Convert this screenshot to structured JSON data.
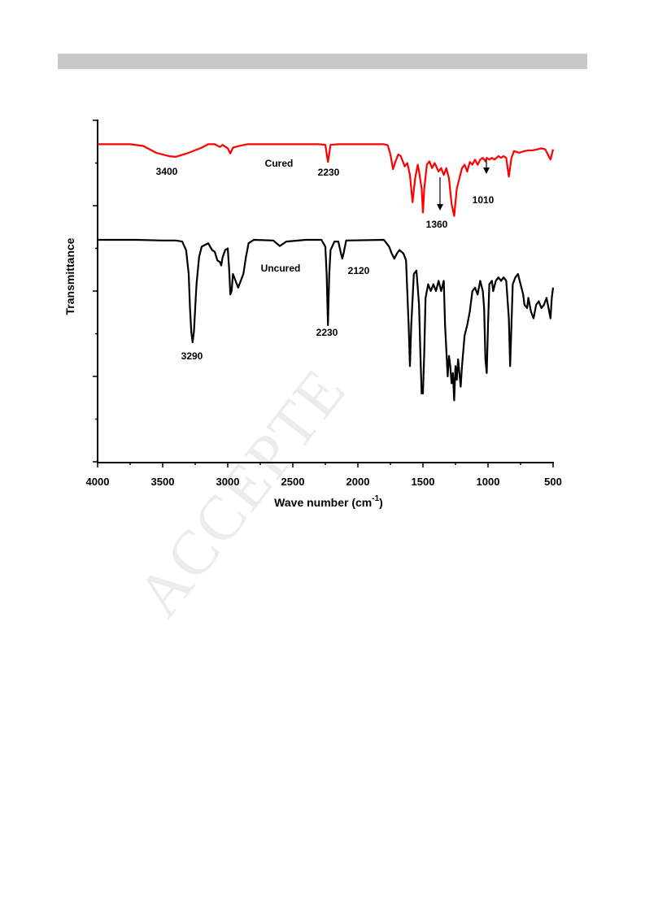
{
  "watermark": "ACCEPTE",
  "chart_data": {
    "type": "line",
    "title": "",
    "xlabel": "Wave number (cm",
    "xlabel_sup": "-1",
    "xlabel_close": ")",
    "ylabel": "Transmittance",
    "xlim": [
      4000,
      500
    ],
    "x_reversed": true,
    "ylim": [
      0,
      100
    ],
    "y_ticks_labeled": false,
    "x_ticks": [
      4000,
      3500,
      3000,
      2500,
      2000,
      1500,
      1000,
      500
    ],
    "x_tick_labels": [
      "4000",
      "3500",
      "3000",
      "2500",
      "2000",
      "1500",
      "1000",
      "500"
    ],
    "grid": false,
    "legend": "none",
    "series": [
      {
        "name": "Cured",
        "color": "#ff0000",
        "points": [
          [
            4000,
            93
          ],
          [
            3750,
            93
          ],
          [
            3650,
            92.5
          ],
          [
            3550,
            90.5
          ],
          [
            3450,
            89.5
          ],
          [
            3400,
            89.3
          ],
          [
            3300,
            90.5
          ],
          [
            3200,
            92
          ],
          [
            3150,
            93
          ],
          [
            3100,
            93
          ],
          [
            3060,
            92.2
          ],
          [
            3040,
            92.8
          ],
          [
            3000,
            91.8
          ],
          [
            2980,
            90.3
          ],
          [
            2960,
            92
          ],
          [
            2900,
            92.6
          ],
          [
            2850,
            93
          ],
          [
            2600,
            93
          ],
          [
            2300,
            93
          ],
          [
            2250,
            92.8
          ],
          [
            2230,
            87.8
          ],
          [
            2210,
            92.8
          ],
          [
            2150,
            93
          ],
          [
            1800,
            93
          ],
          [
            1770,
            92.7
          ],
          [
            1750,
            90
          ],
          [
            1730,
            85.7
          ],
          [
            1710,
            88
          ],
          [
            1690,
            90
          ],
          [
            1670,
            89.5
          ],
          [
            1640,
            86.5
          ],
          [
            1620,
            87.5
          ],
          [
            1600,
            84
          ],
          [
            1580,
            76
          ],
          [
            1560,
            83
          ],
          [
            1540,
            87
          ],
          [
            1530,
            85
          ],
          [
            1510,
            80
          ],
          [
            1500,
            73
          ],
          [
            1490,
            80
          ],
          [
            1470,
            87
          ],
          [
            1450,
            88
          ],
          [
            1430,
            86
          ],
          [
            1410,
            87.5
          ],
          [
            1380,
            85
          ],
          [
            1360,
            86
          ],
          [
            1340,
            84
          ],
          [
            1320,
            86
          ],
          [
            1300,
            83
          ],
          [
            1280,
            75.5
          ],
          [
            1260,
            72
          ],
          [
            1240,
            80
          ],
          [
            1220,
            83
          ],
          [
            1200,
            86
          ],
          [
            1180,
            87
          ],
          [
            1160,
            85
          ],
          [
            1140,
            87.8
          ],
          [
            1120,
            87
          ],
          [
            1100,
            88.5
          ],
          [
            1080,
            87
          ],
          [
            1060,
            88.5
          ],
          [
            1040,
            89
          ],
          [
            1020,
            88
          ],
          [
            1010,
            89
          ],
          [
            990,
            88.5
          ],
          [
            970,
            89
          ],
          [
            950,
            88.5
          ],
          [
            920,
            89.5
          ],
          [
            900,
            89
          ],
          [
            880,
            89.5
          ],
          [
            860,
            89
          ],
          [
            840,
            83.5
          ],
          [
            820,
            89
          ],
          [
            800,
            91
          ],
          [
            760,
            90.5
          ],
          [
            720,
            91
          ],
          [
            690,
            91.2
          ],
          [
            660,
            91.2
          ],
          [
            620,
            91.5
          ],
          [
            590,
            91.8
          ],
          [
            560,
            91.5
          ],
          [
            540,
            90
          ],
          [
            520,
            88.5
          ],
          [
            510,
            90
          ],
          [
            500,
            91.5
          ]
        ]
      },
      {
        "name": "Uncured",
        "color": "#000000",
        "points": [
          [
            4000,
            65
          ],
          [
            3700,
            65
          ],
          [
            3500,
            64.8
          ],
          [
            3400,
            64.8
          ],
          [
            3350,
            64.5
          ],
          [
            3320,
            62
          ],
          [
            3300,
            55
          ],
          [
            3290,
            45
          ],
          [
            3280,
            38
          ],
          [
            3270,
            35
          ],
          [
            3260,
            38
          ],
          [
            3240,
            52
          ],
          [
            3220,
            60
          ],
          [
            3200,
            63
          ],
          [
            3150,
            64
          ],
          [
            3120,
            62
          ],
          [
            3100,
            61.5
          ],
          [
            3080,
            59
          ],
          [
            3060,
            58.5
          ],
          [
            3050,
            57.5
          ],
          [
            3040,
            59.8
          ],
          [
            3020,
            62
          ],
          [
            3000,
            62.5
          ],
          [
            2990,
            57
          ],
          [
            2980,
            49
          ],
          [
            2970,
            50
          ],
          [
            2960,
            55
          ],
          [
            2940,
            53
          ],
          [
            2920,
            51
          ],
          [
            2900,
            53
          ],
          [
            2880,
            55
          ],
          [
            2860,
            60
          ],
          [
            2840,
            64
          ],
          [
            2800,
            65
          ],
          [
            2650,
            64.8
          ],
          [
            2600,
            63.2
          ],
          [
            2550,
            64.5
          ],
          [
            2400,
            65
          ],
          [
            2280,
            65
          ],
          [
            2250,
            63
          ],
          [
            2240,
            55
          ],
          [
            2230,
            40
          ],
          [
            2220,
            55
          ],
          [
            2210,
            62
          ],
          [
            2180,
            64.5
          ],
          [
            2150,
            64.5
          ],
          [
            2130,
            61
          ],
          [
            2120,
            59.5
          ],
          [
            2110,
            61
          ],
          [
            2090,
            64.8
          ],
          [
            1800,
            65
          ],
          [
            1760,
            63
          ],
          [
            1740,
            61
          ],
          [
            1720,
            59.5
          ],
          [
            1700,
            61
          ],
          [
            1680,
            62
          ],
          [
            1650,
            61
          ],
          [
            1630,
            59
          ],
          [
            1610,
            40
          ],
          [
            1600,
            28
          ],
          [
            1590,
            40
          ],
          [
            1570,
            55
          ],
          [
            1550,
            56
          ],
          [
            1530,
            46
          ],
          [
            1520,
            32
          ],
          [
            1510,
            20
          ],
          [
            1500,
            20
          ],
          [
            1490,
            32
          ],
          [
            1480,
            48
          ],
          [
            1460,
            52
          ],
          [
            1440,
            50
          ],
          [
            1420,
            52
          ],
          [
            1400,
            50
          ],
          [
            1380,
            53
          ],
          [
            1360,
            50
          ],
          [
            1340,
            53
          ],
          [
            1330,
            40
          ],
          [
            1310,
            25
          ],
          [
            1300,
            31
          ],
          [
            1290,
            28
          ],
          [
            1280,
            23
          ],
          [
            1270,
            26
          ],
          [
            1260,
            18
          ],
          [
            1250,
            28
          ],
          [
            1240,
            24
          ],
          [
            1230,
            30
          ],
          [
            1220,
            26
          ],
          [
            1210,
            22
          ],
          [
            1200,
            28
          ],
          [
            1180,
            37
          ],
          [
            1160,
            40
          ],
          [
            1140,
            44
          ],
          [
            1120,
            50
          ],
          [
            1100,
            51
          ],
          [
            1080,
            49
          ],
          [
            1060,
            53
          ],
          [
            1040,
            50
          ],
          [
            1030,
            45
          ],
          [
            1020,
            30
          ],
          [
            1010,
            26
          ],
          [
            1000,
            40
          ],
          [
            990,
            52
          ],
          [
            970,
            53
          ],
          [
            960,
            50
          ],
          [
            940,
            53
          ],
          [
            920,
            54
          ],
          [
            900,
            53
          ],
          [
            880,
            54
          ],
          [
            860,
            53
          ],
          [
            840,
            42
          ],
          [
            830,
            28
          ],
          [
            820,
            40
          ],
          [
            810,
            52
          ],
          [
            790,
            54
          ],
          [
            770,
            55
          ],
          [
            750,
            52
          ],
          [
            730,
            49
          ],
          [
            720,
            46
          ],
          [
            700,
            45
          ],
          [
            690,
            48
          ],
          [
            670,
            44
          ],
          [
            650,
            42
          ],
          [
            630,
            46
          ],
          [
            610,
            47
          ],
          [
            590,
            45
          ],
          [
            570,
            46
          ],
          [
            550,
            48
          ],
          [
            530,
            44
          ],
          [
            520,
            42
          ],
          [
            510,
            48
          ],
          [
            500,
            51
          ]
        ]
      }
    ],
    "annotations": [
      {
        "text": "3400",
        "series": "Cured"
      },
      {
        "text": "2230",
        "series": "Cured"
      },
      {
        "text": "1360",
        "series": "Cured",
        "arrow": true
      },
      {
        "text": "1010",
        "series": "Cured",
        "arrow": true
      },
      {
        "text": "3290",
        "series": "Uncured"
      },
      {
        "text": "2230",
        "series": "Uncured"
      },
      {
        "text": "2120",
        "series": "Uncured"
      }
    ],
    "series_labels": [
      "Cured",
      "Uncured"
    ]
  }
}
